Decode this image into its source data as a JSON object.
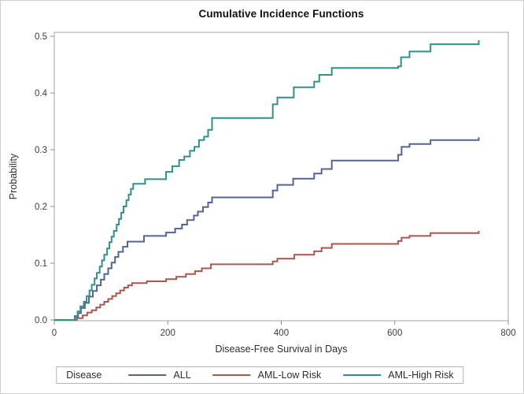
{
  "figure": {
    "title": "Cumulative Incidence Functions",
    "x_axis": {
      "label": "Disease-Free Survival in Days"
    },
    "y_axis": {
      "label": "Probability"
    },
    "legend": {
      "title": "Disease"
    }
  },
  "chart_data": {
    "type": "line",
    "subtype": "step",
    "title": "Cumulative Incidence Functions",
    "xlabel": "Disease-Free Survival in Days",
    "ylabel": "Probability",
    "xlim": [
      0,
      800
    ],
    "ylim": [
      0,
      0.5
    ],
    "x_ticks": [
      0,
      200,
      400,
      600,
      800
    ],
    "y_ticks": [
      0.0,
      0.1,
      0.2,
      0.3,
      0.4,
      0.5
    ],
    "grid": false,
    "legend_position": "bottom",
    "legend_title": "Disease",
    "frame_color": "#a3a3a3",
    "tick_color": "#8f8f8f",
    "series": [
      {
        "name": "ALL",
        "color": "#54639e",
        "points": [
          [
            0,
            0
          ],
          [
            36,
            0.004
          ],
          [
            42,
            0.012
          ],
          [
            47,
            0.021
          ],
          [
            54,
            0.03
          ],
          [
            61,
            0.041
          ],
          [
            68,
            0.051
          ],
          [
            75,
            0.061
          ],
          [
            82,
            0.071
          ],
          [
            88,
            0.081
          ],
          [
            95,
            0.091
          ],
          [
            101,
            0.101
          ],
          [
            107,
            0.111
          ],
          [
            113,
            0.12
          ],
          [
            121,
            0.129
          ],
          [
            129,
            0.138
          ],
          [
            158,
            0.148
          ],
          [
            197,
            0.154
          ],
          [
            213,
            0.161
          ],
          [
            225,
            0.168
          ],
          [
            234,
            0.176
          ],
          [
            246,
            0.184
          ],
          [
            253,
            0.191
          ],
          [
            262,
            0.199
          ],
          [
            271,
            0.207
          ],
          [
            278,
            0.216
          ],
          [
            385,
            0.228
          ],
          [
            393,
            0.238
          ],
          [
            421,
            0.249
          ],
          [
            458,
            0.258
          ],
          [
            471,
            0.266
          ],
          [
            489,
            0.281
          ],
          [
            606,
            0.291
          ],
          [
            612,
            0.305
          ],
          [
            626,
            0.31
          ],
          [
            663,
            0.317
          ],
          [
            748,
            0.322
          ]
        ]
      },
      {
        "name": "AML-Low Risk",
        "color": "#b1544e",
        "points": [
          [
            0,
            0
          ],
          [
            40,
            0.003
          ],
          [
            50,
            0.008
          ],
          [
            58,
            0.013
          ],
          [
            66,
            0.017
          ],
          [
            74,
            0.022
          ],
          [
            81,
            0.027
          ],
          [
            88,
            0.032
          ],
          [
            95,
            0.037
          ],
          [
            102,
            0.042
          ],
          [
            109,
            0.047
          ],
          [
            116,
            0.052
          ],
          [
            123,
            0.057
          ],
          [
            130,
            0.061
          ],
          [
            137,
            0.065
          ],
          [
            163,
            0.068
          ],
          [
            197,
            0.072
          ],
          [
            215,
            0.076
          ],
          [
            232,
            0.081
          ],
          [
            248,
            0.086
          ],
          [
            260,
            0.091
          ],
          [
            276,
            0.098
          ],
          [
            385,
            0.103
          ],
          [
            393,
            0.108
          ],
          [
            423,
            0.115
          ],
          [
            458,
            0.121
          ],
          [
            471,
            0.127
          ],
          [
            489,
            0.134
          ],
          [
            606,
            0.139
          ],
          [
            612,
            0.145
          ],
          [
            626,
            0.148
          ],
          [
            663,
            0.153
          ],
          [
            748,
            0.157
          ]
        ]
      },
      {
        "name": "AML-High Risk",
        "color": "#2f908c",
        "points": [
          [
            0,
            0
          ],
          [
            36,
            0.007
          ],
          [
            41,
            0.015
          ],
          [
            46,
            0.024
          ],
          [
            52,
            0.032
          ],
          [
            57,
            0.042
          ],
          [
            62,
            0.052
          ],
          [
            66,
            0.062
          ],
          [
            71,
            0.073
          ],
          [
            75,
            0.083
          ],
          [
            80,
            0.094
          ],
          [
            84,
            0.105
          ],
          [
            88,
            0.115
          ],
          [
            93,
            0.126
          ],
          [
            97,
            0.137
          ],
          [
            101,
            0.147
          ],
          [
            105,
            0.157
          ],
          [
            110,
            0.168
          ],
          [
            114,
            0.178
          ],
          [
            118,
            0.189
          ],
          [
            122,
            0.2
          ],
          [
            127,
            0.211
          ],
          [
            131,
            0.221
          ],
          [
            135,
            0.231
          ],
          [
            139,
            0.24
          ],
          [
            160,
            0.248
          ],
          [
            197,
            0.261
          ],
          [
            208,
            0.271
          ],
          [
            220,
            0.282
          ],
          [
            229,
            0.288
          ],
          [
            239,
            0.298
          ],
          [
            247,
            0.305
          ],
          [
            255,
            0.317
          ],
          [
            264,
            0.323
          ],
          [
            271,
            0.335
          ],
          [
            278,
            0.356
          ],
          [
            385,
            0.38
          ],
          [
            393,
            0.392
          ],
          [
            422,
            0.41
          ],
          [
            458,
            0.42
          ],
          [
            467,
            0.432
          ],
          [
            489,
            0.444
          ],
          [
            606,
            0.447
          ],
          [
            611,
            0.463
          ],
          [
            626,
            0.473
          ],
          [
            663,
            0.486
          ],
          [
            748,
            0.493
          ]
        ]
      }
    ]
  }
}
